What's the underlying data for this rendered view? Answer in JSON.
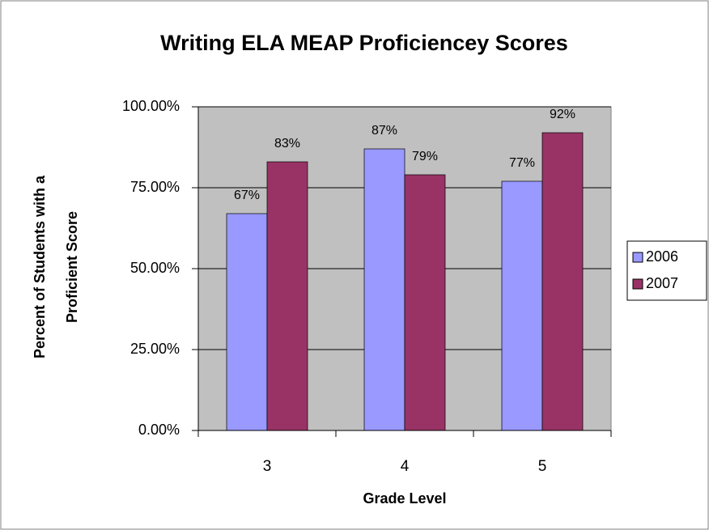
{
  "chart_data": {
    "type": "bar",
    "title": "Writing ELA MEAP Proficiencey Scores",
    "xlabel": "Grade Level",
    "ylabel": [
      "Percent of Students with a",
      "Proficient Score"
    ],
    "categories": [
      "3",
      "4",
      "5"
    ],
    "series": [
      {
        "name": "2006",
        "color": "#9999ff",
        "values": [
          67,
          87,
          77
        ],
        "value_labels": [
          "67%",
          "87%",
          "77%"
        ]
      },
      {
        "name": "2007",
        "color": "#993366",
        "values": [
          83,
          79,
          92
        ],
        "value_labels": [
          "83%",
          "79%",
          "92%"
        ]
      }
    ],
    "ylim": [
      0,
      100
    ],
    "yticks": [
      {
        "value": 0,
        "label": "0.00%"
      },
      {
        "value": 25,
        "label": "25.00%"
      },
      {
        "value": 50,
        "label": "50.00%"
      },
      {
        "value": 75,
        "label": "75.00%"
      },
      {
        "value": 100,
        "label": "100.00%"
      }
    ],
    "grid": true,
    "legend": "right"
  }
}
